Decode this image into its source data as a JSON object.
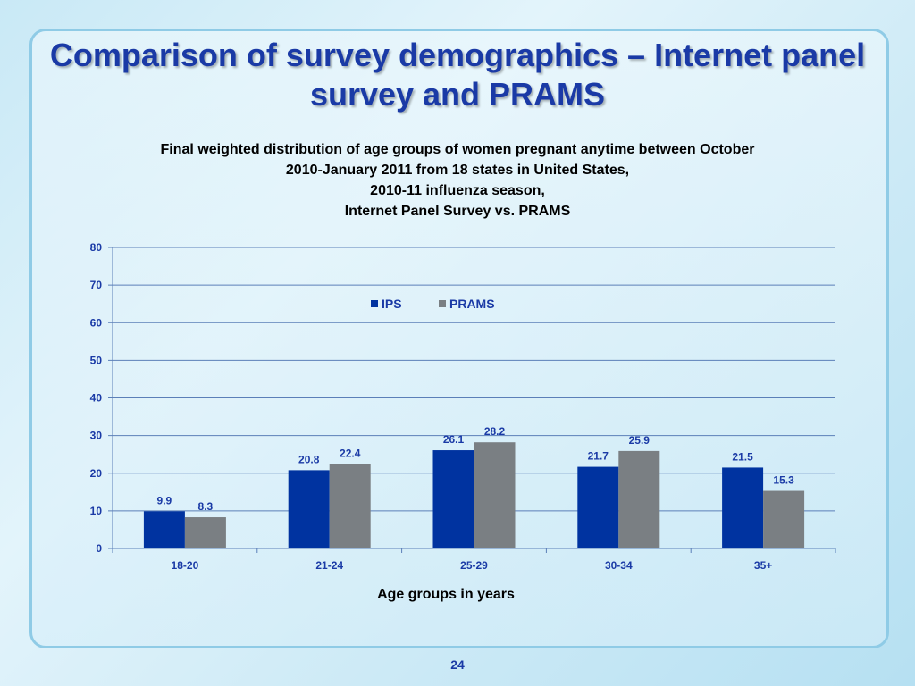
{
  "slide": {
    "title": "Comparison of survey demographics – Internet panel survey and PRAMS",
    "page_number": "24"
  },
  "colors": {
    "ips": "#0033a0",
    "prams": "#7a7f83",
    "title": "#1a3aa6",
    "label": "#1a3aa6"
  },
  "chart_data": {
    "type": "bar",
    "title_lines": [
      "Final weighted distribution of age groups of women pregnant anytime between October",
      "2010-January 2011 from 18 states in United States,",
      "2010-11 influenza season,",
      "Internet Panel Survey vs. PRAMS"
    ],
    "xlabel": "Age groups in years",
    "ylabel": "",
    "categories": [
      "18-20",
      "21-24",
      "25-29",
      "30-34",
      "35+"
    ],
    "series": [
      {
        "name": "IPS",
        "values": [
          9.9,
          20.8,
          26.1,
          21.7,
          21.5
        ],
        "value_labels": [
          "9.9",
          "20.8",
          "26.1",
          "21.7",
          "21.5"
        ]
      },
      {
        "name": "PRAMS",
        "values": [
          8.3,
          22.4,
          28.2,
          25.9,
          15.3
        ],
        "value_labels": [
          "8.3",
          "22.4",
          "28.2",
          "25.9",
          "15.3"
        ]
      }
    ],
    "ylim": [
      0,
      80
    ],
    "yticks": [
      "0",
      "10",
      "20",
      "30",
      "40",
      "50",
      "60",
      "70",
      "80"
    ],
    "grid": true,
    "legend_position": "top-center"
  }
}
